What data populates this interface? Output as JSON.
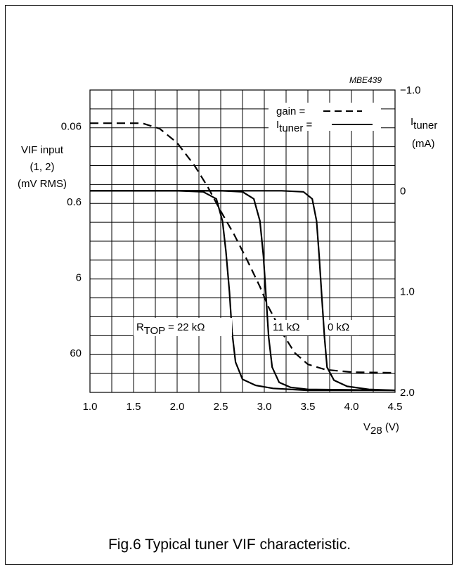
{
  "chart_data": {
    "type": "line",
    "figure_code": "MBE439",
    "caption": "Fig.6  Typical tuner VIF characteristic.",
    "x": {
      "label_main": "V",
      "label_sub": "28",
      "label_unit": " (V)",
      "range": [
        1.0,
        4.5
      ],
      "ticks": [
        "1.0",
        "1.5",
        "2.0",
        "2.5",
        "3.0",
        "3.5",
        "4.0",
        "4.5"
      ]
    },
    "y_left": {
      "label_lines": [
        "VIF input",
        "(1, 2)",
        "(mV RMS)"
      ],
      "scale": "log",
      "range_top_to_bottom": [
        0.02,
        200
      ],
      "ticks": [
        {
          "value": 0.06,
          "label": "0.06"
        },
        {
          "value": 0.6,
          "label": "0.6"
        },
        {
          "value": 6,
          "label": "6"
        },
        {
          "value": 60,
          "label": "60"
        }
      ]
    },
    "y_right": {
      "label_main": "I",
      "label_sub": "tuner",
      "label_unit": "(mA)",
      "range_top_to_bottom": [
        -1.0,
        2.0
      ],
      "ticks": [
        {
          "value": -1.0,
          "label": "−1.0"
        },
        {
          "value": 0,
          "label": "0"
        },
        {
          "value": 1.0,
          "label": "1.0"
        },
        {
          "value": 2.0,
          "label": "2.0"
        }
      ]
    },
    "grid": true,
    "legend": {
      "placement": "top-right",
      "gain_label": "gain =",
      "tuner_label_main": "I",
      "tuner_label_sub": "tuner",
      "tuner_label_end": " ="
    },
    "series": [
      {
        "axis": "left",
        "style": "dashed",
        "points": [
          [
            1.0,
            0.055
          ],
          [
            1.6,
            0.055
          ],
          [
            1.8,
            0.065
          ],
          [
            2.0,
            0.1
          ],
          [
            2.2,
            0.2
          ],
          [
            2.35,
            0.38
          ],
          [
            2.5,
            0.8
          ],
          [
            2.65,
            1.6
          ],
          [
            2.8,
            3.5
          ],
          [
            2.95,
            8
          ],
          [
            3.05,
            15
          ],
          [
            3.2,
            32
          ],
          [
            3.35,
            60
          ],
          [
            3.5,
            85
          ],
          [
            3.7,
            100
          ],
          [
            4.0,
            108
          ],
          [
            4.5,
            110
          ]
        ]
      },
      {
        "axis": "right",
        "style": "solid",
        "annotation_main": "R",
        "annotation_sub": "TOP",
        "annotation_end": " = 22 kΩ",
        "points": [
          [
            1.0,
            0
          ],
          [
            2.0,
            0
          ],
          [
            2.3,
            0.01
          ],
          [
            2.45,
            0.08
          ],
          [
            2.52,
            0.3
          ],
          [
            2.56,
            0.6
          ],
          [
            2.6,
            1.0
          ],
          [
            2.63,
            1.4
          ],
          [
            2.67,
            1.7
          ],
          [
            2.75,
            1.87
          ],
          [
            2.9,
            1.93
          ],
          [
            3.1,
            1.96
          ],
          [
            3.5,
            1.98
          ],
          [
            4.5,
            1.98
          ]
        ]
      },
      {
        "axis": "right",
        "style": "solid",
        "annotation": "11 kΩ",
        "points": [
          [
            1.0,
            0
          ],
          [
            2.5,
            0
          ],
          [
            2.75,
            0.01
          ],
          [
            2.88,
            0.08
          ],
          [
            2.95,
            0.3
          ],
          [
            2.99,
            0.65
          ],
          [
            3.02,
            1.05
          ],
          [
            3.05,
            1.45
          ],
          [
            3.09,
            1.75
          ],
          [
            3.17,
            1.9
          ],
          [
            3.3,
            1.95
          ],
          [
            3.5,
            1.97
          ],
          [
            4.5,
            1.98
          ]
        ]
      },
      {
        "axis": "right",
        "style": "solid",
        "annotation": "0 kΩ",
        "points": [
          [
            1.0,
            0
          ],
          [
            3.2,
            0
          ],
          [
            3.45,
            0.01
          ],
          [
            3.55,
            0.08
          ],
          [
            3.6,
            0.3
          ],
          [
            3.63,
            0.65
          ],
          [
            3.66,
            1.05
          ],
          [
            3.69,
            1.45
          ],
          [
            3.72,
            1.75
          ],
          [
            3.8,
            1.88
          ],
          [
            3.95,
            1.94
          ],
          [
            4.2,
            1.97
          ],
          [
            4.5,
            1.98
          ]
        ]
      }
    ]
  }
}
